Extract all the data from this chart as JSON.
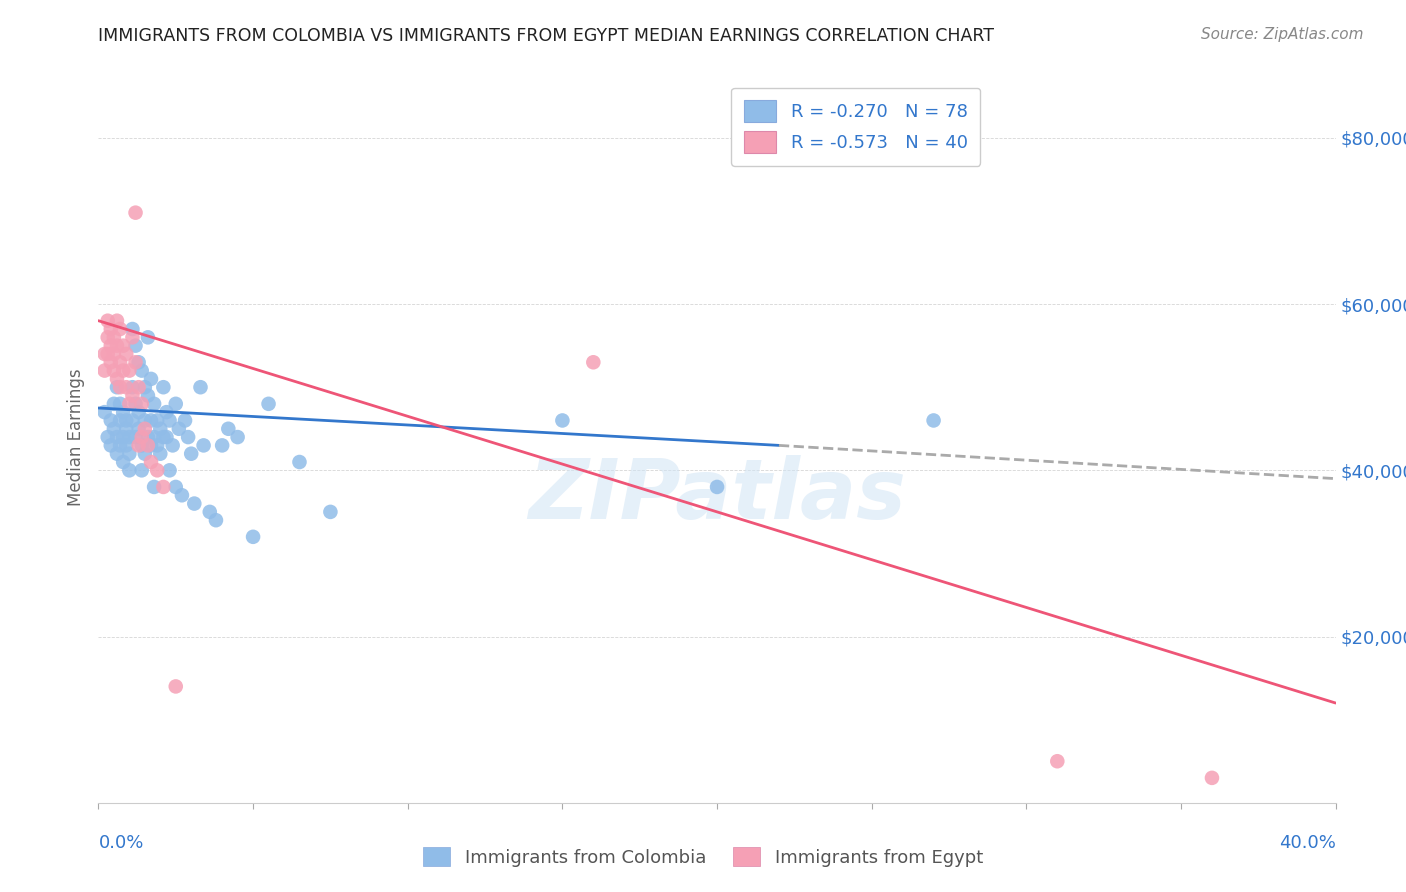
{
  "title": "IMMIGRANTS FROM COLOMBIA VS IMMIGRANTS FROM EGYPT MEDIAN EARNINGS CORRELATION CHART",
  "source": "Source: ZipAtlas.com",
  "ylabel": "Median Earnings",
  "ytick_labels": [
    "$20,000",
    "$40,000",
    "$60,000",
    "$80,000"
  ],
  "ytick_values": [
    20000,
    40000,
    60000,
    80000
  ],
  "y_max": 88000,
  "y_min": 0,
  "x_min": 0.0,
  "x_max": 0.4,
  "watermark": "ZIPatlas",
  "legend_colombia": "R = -0.270   N = 78",
  "legend_egypt": "R = -0.573   N = 40",
  "colombia_color": "#90bce8",
  "egypt_color": "#f5a0b5",
  "colombia_line_color": "#3377cc",
  "egypt_line_color": "#ee5577",
  "dashed_line_color": "#aaaaaa",
  "colombia_scatter": [
    [
      0.002,
      47000
    ],
    [
      0.003,
      44000
    ],
    [
      0.004,
      46000
    ],
    [
      0.004,
      43000
    ],
    [
      0.005,
      48000
    ],
    [
      0.005,
      45000
    ],
    [
      0.006,
      50000
    ],
    [
      0.006,
      42000
    ],
    [
      0.006,
      44000
    ],
    [
      0.007,
      48000
    ],
    [
      0.007,
      46000
    ],
    [
      0.007,
      43000
    ],
    [
      0.008,
      47000
    ],
    [
      0.008,
      44000
    ],
    [
      0.008,
      41000
    ],
    [
      0.009,
      46000
    ],
    [
      0.009,
      43000
    ],
    [
      0.009,
      45000
    ],
    [
      0.01,
      44000
    ],
    [
      0.01,
      42000
    ],
    [
      0.01,
      40000
    ],
    [
      0.011,
      57000
    ],
    [
      0.011,
      50000
    ],
    [
      0.011,
      46000
    ],
    [
      0.012,
      55000
    ],
    [
      0.012,
      48000
    ],
    [
      0.012,
      44000
    ],
    [
      0.013,
      53000
    ],
    [
      0.013,
      47000
    ],
    [
      0.013,
      45000
    ],
    [
      0.014,
      52000
    ],
    [
      0.014,
      43000
    ],
    [
      0.014,
      40000
    ],
    [
      0.015,
      50000
    ],
    [
      0.015,
      46000
    ],
    [
      0.015,
      42000
    ],
    [
      0.016,
      56000
    ],
    [
      0.016,
      49000
    ],
    [
      0.016,
      44000
    ],
    [
      0.017,
      51000
    ],
    [
      0.017,
      46000
    ],
    [
      0.017,
      43000
    ],
    [
      0.018,
      48000
    ],
    [
      0.018,
      44000
    ],
    [
      0.018,
      38000
    ],
    [
      0.019,
      46000
    ],
    [
      0.019,
      43000
    ],
    [
      0.02,
      45000
    ],
    [
      0.02,
      42000
    ],
    [
      0.021,
      50000
    ],
    [
      0.021,
      44000
    ],
    [
      0.022,
      47000
    ],
    [
      0.022,
      44000
    ],
    [
      0.023,
      40000
    ],
    [
      0.023,
      46000
    ],
    [
      0.024,
      43000
    ],
    [
      0.025,
      48000
    ],
    [
      0.025,
      38000
    ],
    [
      0.026,
      45000
    ],
    [
      0.027,
      37000
    ],
    [
      0.028,
      46000
    ],
    [
      0.029,
      44000
    ],
    [
      0.03,
      42000
    ],
    [
      0.031,
      36000
    ],
    [
      0.033,
      50000
    ],
    [
      0.034,
      43000
    ],
    [
      0.036,
      35000
    ],
    [
      0.038,
      34000
    ],
    [
      0.04,
      43000
    ],
    [
      0.042,
      45000
    ],
    [
      0.045,
      44000
    ],
    [
      0.05,
      32000
    ],
    [
      0.055,
      48000
    ],
    [
      0.065,
      41000
    ],
    [
      0.075,
      35000
    ],
    [
      0.15,
      46000
    ],
    [
      0.2,
      38000
    ],
    [
      0.27,
      46000
    ]
  ],
  "egypt_scatter": [
    [
      0.002,
      54000
    ],
    [
      0.002,
      52000
    ],
    [
      0.003,
      58000
    ],
    [
      0.003,
      56000
    ],
    [
      0.003,
      54000
    ],
    [
      0.004,
      57000
    ],
    [
      0.004,
      55000
    ],
    [
      0.004,
      53000
    ],
    [
      0.005,
      56000
    ],
    [
      0.005,
      54000
    ],
    [
      0.005,
      52000
    ],
    [
      0.006,
      58000
    ],
    [
      0.006,
      55000
    ],
    [
      0.006,
      51000
    ],
    [
      0.007,
      57000
    ],
    [
      0.007,
      53000
    ],
    [
      0.007,
      50000
    ],
    [
      0.008,
      55000
    ],
    [
      0.008,
      52000
    ],
    [
      0.009,
      54000
    ],
    [
      0.009,
      50000
    ],
    [
      0.01,
      52000
    ],
    [
      0.01,
      48000
    ],
    [
      0.011,
      56000
    ],
    [
      0.011,
      49000
    ],
    [
      0.012,
      71000
    ],
    [
      0.012,
      53000
    ],
    [
      0.013,
      50000
    ],
    [
      0.013,
      43000
    ],
    [
      0.014,
      48000
    ],
    [
      0.014,
      44000
    ],
    [
      0.015,
      45000
    ],
    [
      0.016,
      43000
    ],
    [
      0.017,
      41000
    ],
    [
      0.019,
      40000
    ],
    [
      0.021,
      38000
    ],
    [
      0.025,
      14000
    ],
    [
      0.16,
      53000
    ],
    [
      0.31,
      5000
    ],
    [
      0.36,
      3000
    ]
  ],
  "colombia_trendline_solid": [
    [
      0.0,
      47500
    ],
    [
      0.22,
      43000
    ]
  ],
  "colombia_trendline_dashed": [
    [
      0.22,
      43000
    ],
    [
      0.4,
      39000
    ]
  ],
  "egypt_trendline": [
    [
      0.0,
      58000
    ],
    [
      0.4,
      12000
    ]
  ]
}
